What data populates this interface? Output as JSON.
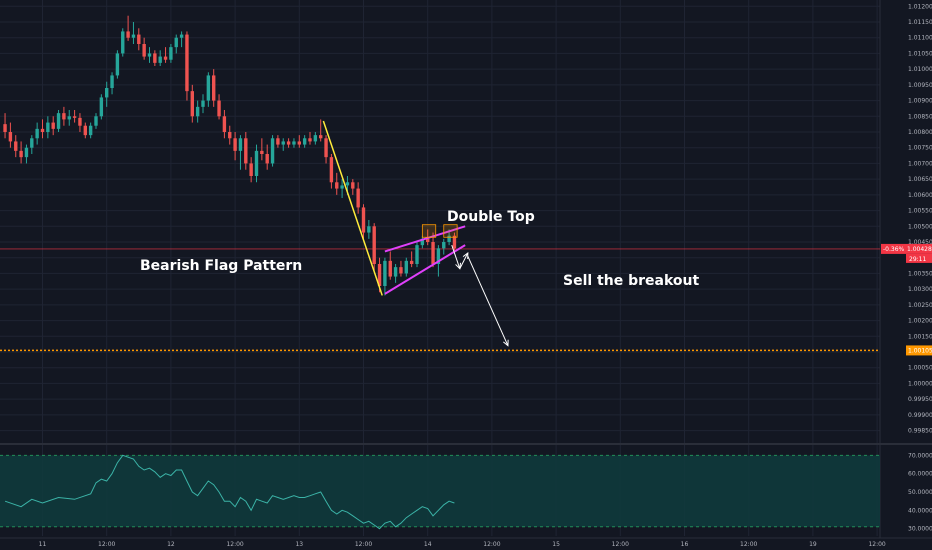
{
  "chart_data": {
    "type": "candlestick",
    "price_axis": {
      "ticks": [
        "1.01200",
        "1.01150",
        "1.01100",
        "1.01050",
        "1.01000",
        "1.00950",
        "1.00900",
        "1.00850",
        "1.00800",
        "1.00750",
        "1.00700",
        "1.00650",
        "1.00600",
        "1.00550",
        "1.00500",
        "1.00450",
        "1.00400",
        "1.00350",
        "1.00300",
        "1.00250",
        "1.00200",
        "1.00150",
        "1.00100",
        "1.00050",
        "1.00000",
        "0.99950",
        "0.99900",
        "0.99850"
      ],
      "ylim": [
        0.9982,
        1.0122
      ]
    },
    "time_axis": {
      "labels": [
        "11",
        "12:00",
        "12",
        "12:00",
        "13",
        "12:00",
        "14",
        "12:00",
        "15",
        "12:00",
        "16",
        "12:00",
        "19",
        "12:00"
      ],
      "hours": [
        0,
        12,
        24,
        36,
        48,
        60,
        72,
        84,
        96,
        108,
        120,
        132,
        144,
        156
      ]
    },
    "candles": [
      {
        "t": -7,
        "o": 1.00825,
        "h": 1.0086,
        "l": 1.0078,
        "c": 1.008
      },
      {
        "t": -6,
        "o": 1.008,
        "h": 1.0083,
        "l": 1.0075,
        "c": 1.0077
      },
      {
        "t": -5,
        "o": 1.0077,
        "h": 1.0079,
        "l": 1.0072,
        "c": 1.0074
      },
      {
        "t": -4,
        "o": 1.0074,
        "h": 1.0077,
        "l": 1.007,
        "c": 1.0072
      },
      {
        "t": -3,
        "o": 1.0072,
        "h": 1.0076,
        "l": 1.007,
        "c": 1.0075
      },
      {
        "t": -2,
        "o": 1.0075,
        "h": 1.0079,
        "l": 1.0073,
        "c": 1.0078
      },
      {
        "t": -1,
        "o": 1.0078,
        "h": 1.0083,
        "l": 1.0076,
        "c": 1.0081
      },
      {
        "t": 0,
        "o": 1.0081,
        "h": 1.0084,
        "l": 1.0078,
        "c": 1.008
      },
      {
        "t": 1,
        "o": 1.008,
        "h": 1.0085,
        "l": 1.0078,
        "c": 1.0083
      },
      {
        "t": 2,
        "o": 1.0083,
        "h": 1.0085,
        "l": 1.0079,
        "c": 1.0081
      },
      {
        "t": 3,
        "o": 1.0081,
        "h": 1.0087,
        "l": 1.008,
        "c": 1.0086
      },
      {
        "t": 4,
        "o": 1.0086,
        "h": 1.0088,
        "l": 1.0082,
        "c": 1.0084
      },
      {
        "t": 5,
        "o": 1.0084,
        "h": 1.0087,
        "l": 1.0082,
        "c": 1.0085
      },
      {
        "t": 6,
        "o": 1.0085,
        "h": 1.0087,
        "l": 1.0083,
        "c": 1.00845
      },
      {
        "t": 7,
        "o": 1.00845,
        "h": 1.0086,
        "l": 1.008,
        "c": 1.0082
      },
      {
        "t": 8,
        "o": 1.0082,
        "h": 1.0083,
        "l": 1.0078,
        "c": 1.0079
      },
      {
        "t": 9,
        "o": 1.0079,
        "h": 1.0083,
        "l": 1.0078,
        "c": 1.0082
      },
      {
        "t": 10,
        "o": 1.0082,
        "h": 1.0086,
        "l": 1.0081,
        "c": 1.0085
      },
      {
        "t": 11,
        "o": 1.0085,
        "h": 1.0092,
        "l": 1.0084,
        "c": 1.0091
      },
      {
        "t": 12,
        "o": 1.0091,
        "h": 1.0096,
        "l": 1.0088,
        "c": 1.0094
      },
      {
        "t": 13,
        "o": 1.0094,
        "h": 1.0099,
        "l": 1.0092,
        "c": 1.0098
      },
      {
        "t": 14,
        "o": 1.0098,
        "h": 1.0106,
        "l": 1.0097,
        "c": 1.0105
      },
      {
        "t": 15,
        "o": 1.0105,
        "h": 1.0113,
        "l": 1.0104,
        "c": 1.0112
      },
      {
        "t": 16,
        "o": 1.0112,
        "h": 1.0117,
        "l": 1.0109,
        "c": 1.011
      },
      {
        "t": 17,
        "o": 1.011,
        "h": 1.0115,
        "l": 1.0108,
        "c": 1.0111
      },
      {
        "t": 18,
        "o": 1.0111,
        "h": 1.0113,
        "l": 1.0106,
        "c": 1.0108
      },
      {
        "t": 19,
        "o": 1.0108,
        "h": 1.011,
        "l": 1.0103,
        "c": 1.0104
      },
      {
        "t": 20,
        "o": 1.0104,
        "h": 1.0107,
        "l": 1.0102,
        "c": 1.0105
      },
      {
        "t": 21,
        "o": 1.0105,
        "h": 1.0106,
        "l": 1.0101,
        "c": 1.0102
      },
      {
        "t": 22,
        "o": 1.0102,
        "h": 1.0106,
        "l": 1.0101,
        "c": 1.0104
      },
      {
        "t": 23,
        "o": 1.0104,
        "h": 1.0107,
        "l": 1.0102,
        "c": 1.0103
      },
      {
        "t": 24,
        "o": 1.0103,
        "h": 1.0108,
        "l": 1.0102,
        "c": 1.0107
      },
      {
        "t": 25,
        "o": 1.0107,
        "h": 1.0111,
        "l": 1.0105,
        "c": 1.011
      },
      {
        "t": 26,
        "o": 1.011,
        "h": 1.0112,
        "l": 1.0107,
        "c": 1.0111
      },
      {
        "t": 27,
        "o": 1.0111,
        "h": 1.0112,
        "l": 1.009,
        "c": 1.0093
      },
      {
        "t": 28,
        "o": 1.0093,
        "h": 1.0095,
        "l": 1.0083,
        "c": 1.0085
      },
      {
        "t": 29,
        "o": 1.0085,
        "h": 1.009,
        "l": 1.0083,
        "c": 1.0088
      },
      {
        "t": 30,
        "o": 1.0088,
        "h": 1.0092,
        "l": 1.0086,
        "c": 1.009
      },
      {
        "t": 31,
        "o": 1.009,
        "h": 1.0099,
        "l": 1.0088,
        "c": 1.0098
      },
      {
        "t": 32,
        "o": 1.0098,
        "h": 1.01,
        "l": 1.0088,
        "c": 1.009
      },
      {
        "t": 33,
        "o": 1.009,
        "h": 1.0092,
        "l": 1.0084,
        "c": 1.0085
      },
      {
        "t": 34,
        "o": 1.0085,
        "h": 1.0087,
        "l": 1.0078,
        "c": 1.008
      },
      {
        "t": 35,
        "o": 1.008,
        "h": 1.0082,
        "l": 1.0076,
        "c": 1.0078
      },
      {
        "t": 36,
        "o": 1.0078,
        "h": 1.008,
        "l": 1.0071,
        "c": 1.0074
      },
      {
        "t": 37,
        "o": 1.0074,
        "h": 1.0079,
        "l": 1.0068,
        "c": 1.0078
      },
      {
        "t": 38,
        "o": 1.0078,
        "h": 1.008,
        "l": 1.0068,
        "c": 1.007
      },
      {
        "t": 39,
        "o": 1.007,
        "h": 1.0072,
        "l": 1.0064,
        "c": 1.0066
      },
      {
        "t": 40,
        "o": 1.0066,
        "h": 1.0076,
        "l": 1.0064,
        "c": 1.0074
      },
      {
        "t": 41,
        "o": 1.0074,
        "h": 1.0078,
        "l": 1.0071,
        "c": 1.0073
      },
      {
        "t": 42,
        "o": 1.0073,
        "h": 1.0076,
        "l": 1.0068,
        "c": 1.007
      },
      {
        "t": 43,
        "o": 1.007,
        "h": 1.0079,
        "l": 1.0069,
        "c": 1.0078
      },
      {
        "t": 44,
        "o": 1.0078,
        "h": 1.0079,
        "l": 1.0075,
        "c": 1.0076
      },
      {
        "t": 45,
        "o": 1.0076,
        "h": 1.0078,
        "l": 1.0074,
        "c": 1.0077
      },
      {
        "t": 46,
        "o": 1.0077,
        "h": 1.0078,
        "l": 1.0075,
        "c": 1.0076
      },
      {
        "t": 47,
        "o": 1.0076,
        "h": 1.0078,
        "l": 1.0075,
        "c": 1.0077
      },
      {
        "t": 48,
        "o": 1.0077,
        "h": 1.0079,
        "l": 1.0075,
        "c": 1.0076
      },
      {
        "t": 49,
        "o": 1.0076,
        "h": 1.0079,
        "l": 1.0075,
        "c": 1.0078
      },
      {
        "t": 50,
        "o": 1.0078,
        "h": 1.008,
        "l": 1.0076,
        "c": 1.0077
      },
      {
        "t": 51,
        "o": 1.0077,
        "h": 1.008,
        "l": 1.0076,
        "c": 1.0079
      },
      {
        "t": 52,
        "o": 1.0079,
        "h": 1.0084,
        "l": 1.0077,
        "c": 1.0078
      },
      {
        "t": 53,
        "o": 1.0078,
        "h": 1.0079,
        "l": 1.007,
        "c": 1.0072
      },
      {
        "t": 54,
        "o": 1.0072,
        "h": 1.0073,
        "l": 1.0062,
        "c": 1.0064
      },
      {
        "t": 55,
        "o": 1.0064,
        "h": 1.0067,
        "l": 1.006,
        "c": 1.0062
      },
      {
        "t": 56,
        "o": 1.0062,
        "h": 1.0065,
        "l": 1.0059,
        "c": 1.0063
      },
      {
        "t": 57,
        "o": 1.0063,
        "h": 1.0066,
        "l": 1.006,
        "c": 1.0064
      },
      {
        "t": 58,
        "o": 1.0064,
        "h": 1.0065,
        "l": 1.006,
        "c": 1.0062
      },
      {
        "t": 59,
        "o": 1.0062,
        "h": 1.0064,
        "l": 1.0054,
        "c": 1.0056
      },
      {
        "t": 60,
        "o": 1.0056,
        "h": 1.0057,
        "l": 1.0046,
        "c": 1.0048
      },
      {
        "t": 61,
        "o": 1.0048,
        "h": 1.0052,
        "l": 1.0046,
        "c": 1.005
      },
      {
        "t": 62,
        "o": 1.005,
        "h": 1.0051,
        "l": 1.0036,
        "c": 1.0038
      },
      {
        "t": 63,
        "o": 1.0038,
        "h": 1.004,
        "l": 1.0029,
        "c": 1.0031
      },
      {
        "t": 64,
        "o": 1.0031,
        "h": 1.004,
        "l": 1.0028,
        "c": 1.0039
      },
      {
        "t": 65,
        "o": 1.0039,
        "h": 1.0042,
        "l": 1.0033,
        "c": 1.0034
      },
      {
        "t": 66,
        "o": 1.0034,
        "h": 1.0038,
        "l": 1.0032,
        "c": 1.0037
      },
      {
        "t": 67,
        "o": 1.0037,
        "h": 1.0039,
        "l": 1.0034,
        "c": 1.0035
      },
      {
        "t": 68,
        "o": 1.0035,
        "h": 1.004,
        "l": 1.0034,
        "c": 1.0039
      },
      {
        "t": 69,
        "o": 1.0039,
        "h": 1.0042,
        "l": 1.0037,
        "c": 1.0038
      },
      {
        "t": 70,
        "o": 1.0038,
        "h": 1.0045,
        "l": 1.0037,
        "c": 1.0044
      },
      {
        "t": 71,
        "o": 1.0044,
        "h": 1.0047,
        "l": 1.0043,
        "c": 1.0046
      },
      {
        "t": 72,
        "o": 1.0046,
        "h": 1.0049,
        "l": 1.0044,
        "c": 1.0045
      },
      {
        "t": 73,
        "o": 1.0045,
        "h": 1.0048,
        "l": 1.0037,
        "c": 1.0038
      },
      {
        "t": 74,
        "o": 1.0038,
        "h": 1.0044,
        "l": 1.0034,
        "c": 1.0043
      },
      {
        "t": 75,
        "o": 1.0043,
        "h": 1.0046,
        "l": 1.0041,
        "c": 1.0045
      },
      {
        "t": 76,
        "o": 1.0045,
        "h": 1.0049,
        "l": 1.0044,
        "c": 1.0047
      },
      {
        "t": 77,
        "o": 1.0047,
        "h": 1.0048,
        "l": 1.0042,
        "c": 1.0043
      }
    ],
    "horizontal_lines": [
      {
        "price": 1.00428,
        "color": "#f23645",
        "style": "solid"
      },
      {
        "price": 1.00105,
        "color": "#ff9800",
        "style": "dotted"
      }
    ],
    "price_tags": {
      "current": {
        "price_text": "1.00428",
        "change_text": "-0.36%",
        "countdown_text": "29:11",
        "color": "#f23645"
      },
      "level": {
        "price_text": "1.00105",
        "color": "#ff9800"
      }
    },
    "drawings": {
      "flagpole": {
        "color": "#ffeb3b",
        "points": [
          {
            "t": 52.5,
            "p": 1.00835
          },
          {
            "t": 63.5,
            "p": 1.0028
          }
        ]
      },
      "flag_upper": {
        "color": "#e040fb",
        "points": [
          {
            "t": 64,
            "p": 1.0042
          },
          {
            "t": 79,
            "p": 1.005
          }
        ]
      },
      "flag_lower": {
        "color": "#e040fb",
        "points": [
          {
            "t": 64,
            "p": 1.00285
          },
          {
            "t": 79,
            "p": 1.0044
          }
        ]
      },
      "double_top_boxes": [
        {
          "t0": 71,
          "t1": 73.5,
          "p0": 1.00465,
          "p1": 1.00505,
          "color": "#ff9800"
        },
        {
          "t0": 75,
          "t1": 77.5,
          "p0": 1.00465,
          "p1": 1.00505,
          "color": "#ff9800"
        }
      ],
      "arrows": [
        {
          "color": "#ffffff",
          "points": [
            {
              "t": 76.5,
              "p": 1.0044
            },
            {
              "t": 78,
              "p": 1.00365
            }
          ]
        },
        {
          "color": "#ffffff",
          "points": [
            {
              "t": 78,
              "p": 1.00365
            },
            {
              "t": 79.5,
              "p": 1.00415
            }
          ]
        },
        {
          "color": "#ffffff",
          "points": [
            {
              "t": 79.5,
              "p": 1.00405
            },
            {
              "t": 87,
              "p": 1.0012
            }
          ]
        }
      ]
    },
    "annotations": {
      "bearish_flag": "Bearish Flag Pattern",
      "double_top": "Double Top",
      "sell": "Sell the breakout"
    },
    "colors": {
      "background": "#131722",
      "up_candle": "#26a69a",
      "down_candle": "#ef5350",
      "rsi_line": "#3bb3a7",
      "rsi_band": "#0f3a3c",
      "rsi_band_border": "#2ecc71"
    },
    "rsi": {
      "ticks": [
        "70.0000",
        "60.0000",
        "50.0000",
        "40.0000",
        "30.0000"
      ],
      "ylim": [
        26,
        74
      ],
      "band": [
        31,
        70
      ],
      "values": [
        [
          -7,
          45
        ],
        [
          -4,
          42
        ],
        [
          -2,
          46
        ],
        [
          0,
          44
        ],
        [
          3,
          47
        ],
        [
          6,
          46
        ],
        [
          9,
          49
        ],
        [
          10,
          55
        ],
        [
          11,
          57
        ],
        [
          12,
          56
        ],
        [
          13,
          60
        ],
        [
          14,
          66
        ],
        [
          15,
          70
        ],
        [
          16,
          69
        ],
        [
          17,
          68
        ],
        [
          18,
          64
        ],
        [
          19,
          62
        ],
        [
          20,
          63
        ],
        [
          21,
          61
        ],
        [
          22,
          58
        ],
        [
          23,
          60
        ],
        [
          24,
          59
        ],
        [
          25,
          62
        ],
        [
          26,
          62
        ],
        [
          27,
          56
        ],
        [
          28,
          50
        ],
        [
          29,
          48
        ],
        [
          30,
          52
        ],
        [
          31,
          56
        ],
        [
          32,
          54
        ],
        [
          33,
          50
        ],
        [
          34,
          45
        ],
        [
          35,
          45
        ],
        [
          36,
          42
        ],
        [
          37,
          47
        ],
        [
          38,
          45
        ],
        [
          39,
          40
        ],
        [
          40,
          46
        ],
        [
          41,
          45
        ],
        [
          42,
          44
        ],
        [
          43,
          48
        ],
        [
          44,
          47
        ],
        [
          45,
          46
        ],
        [
          46,
          47
        ],
        [
          47,
          48
        ],
        [
          48,
          47
        ],
        [
          49,
          47
        ],
        [
          50,
          48
        ],
        [
          51,
          49
        ],
        [
          52,
          50
        ],
        [
          53,
          45
        ],
        [
          54,
          40
        ],
        [
          55,
          38
        ],
        [
          56,
          40
        ],
        [
          57,
          39
        ],
        [
          58,
          37
        ],
        [
          59,
          35
        ],
        [
          60,
          33
        ],
        [
          61,
          34
        ],
        [
          62,
          32
        ],
        [
          63,
          30
        ],
        [
          64,
          33
        ],
        [
          65,
          34
        ],
        [
          66,
          31
        ],
        [
          67,
          33
        ],
        [
          68,
          36
        ],
        [
          69,
          38
        ],
        [
          70,
          40
        ],
        [
          71,
          42
        ],
        [
          72,
          41
        ],
        [
          73,
          37
        ],
        [
          74,
          40
        ],
        [
          75,
          43
        ],
        [
          76,
          45
        ],
        [
          77,
          44
        ]
      ]
    }
  }
}
